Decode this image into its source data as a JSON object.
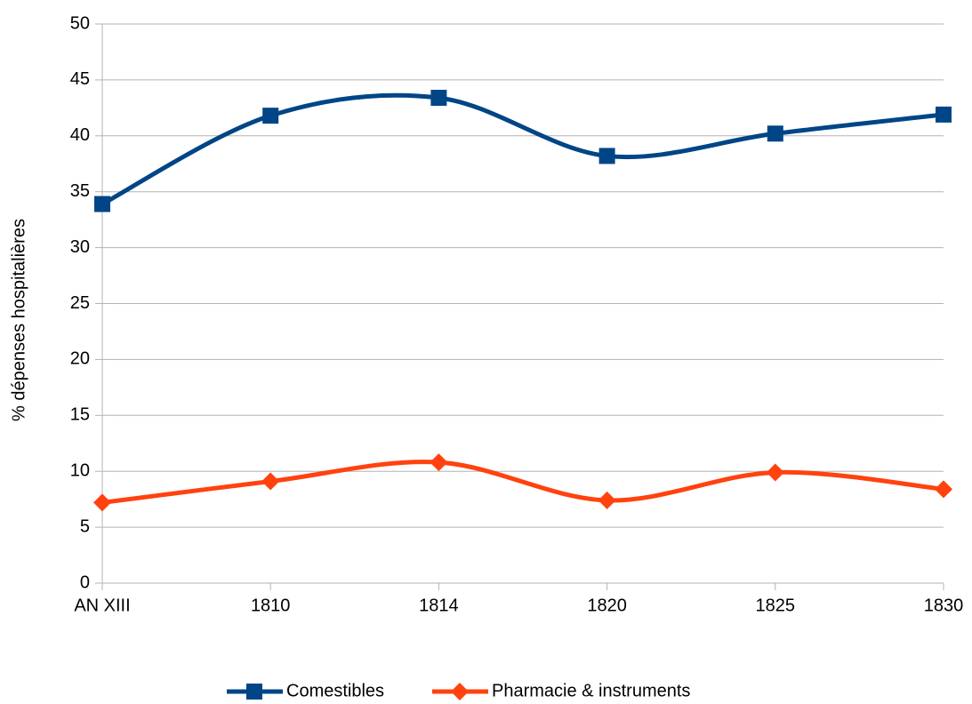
{
  "chart_data": {
    "type": "line",
    "y_label": "% dépenses hospitalières",
    "categories": [
      "AN XIII",
      "1810",
      "1814",
      "1820",
      "1825",
      "1830"
    ],
    "series": [
      {
        "name": "Comestibles",
        "color": "#004586",
        "marker": "square",
        "values": [
          33.9,
          41.8,
          43.4,
          38.2,
          40.2,
          41.9
        ]
      },
      {
        "name": "Pharmacie & instruments",
        "color": "#ff420e",
        "marker": "diamond",
        "values": [
          7.2,
          9.1,
          10.8,
          7.4,
          9.9,
          8.4
        ]
      }
    ],
    "ylim": [
      0,
      50
    ],
    "yticks": [
      0,
      5,
      10,
      15,
      20,
      25,
      30,
      35,
      40,
      45,
      50
    ],
    "grid": true,
    "smooth": true,
    "legend": "bottom"
  }
}
